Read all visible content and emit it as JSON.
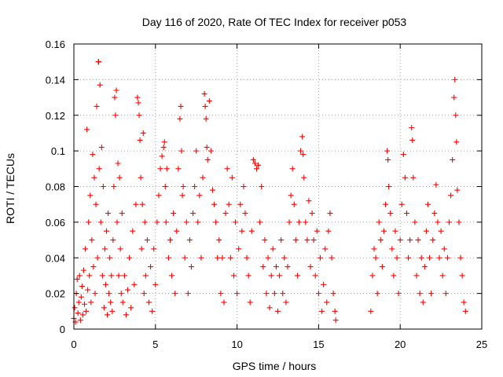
{
  "chart_data": {
    "type": "scatter",
    "title": "Day 116 of 2020, Rate Of TEC Index for receiver p053",
    "xlabel": "GPS time / hours",
    "ylabel": "ROTI / TECUs",
    "xlim": [
      0,
      25
    ],
    "ylim": [
      0,
      0.16
    ],
    "x_ticks": [
      0,
      5,
      10,
      15,
      20,
      25
    ],
    "x_tick_labels": [
      "0",
      "5",
      "10",
      "15",
      "20",
      "25"
    ],
    "y_ticks": [
      0,
      0.02,
      0.04,
      0.06,
      0.08,
      0.1,
      0.12,
      0.14,
      0.16
    ],
    "y_tick_labels": [
      "0",
      "0.02",
      "0.04",
      "0.06",
      "0.08",
      "0.1",
      "0.12",
      "0.14",
      "0.16"
    ],
    "grid": true,
    "marker": "+",
    "color": "#ff0000",
    "series": [
      {
        "points": [
          [
            0.0,
            0.006
          ],
          [
            0.05,
            0.012
          ],
          [
            0.1,
            0.004
          ],
          [
            0.15,
            0.02
          ],
          [
            0.2,
            0.028
          ],
          [
            0.25,
            0.009
          ],
          [
            0.3,
            0.015
          ],
          [
            0.35,
            0.03
          ],
          [
            0.4,
            0.005
          ],
          [
            0.45,
            0.018
          ],
          [
            0.5,
            0.024
          ],
          [
            0.55,
            0.008
          ],
          [
            0.6,
            0.033
          ],
          [
            0.65,
            0.014
          ],
          [
            0.7,
            0.045
          ],
          [
            0.75,
            0.01
          ],
          [
            0.8,
            0.112
          ],
          [
            0.85,
            0.022
          ],
          [
            0.9,
            0.06
          ],
          [
            0.95,
            0.03
          ],
          [
            1.0,
            0.075
          ],
          [
            1.05,
            0.015
          ],
          [
            1.1,
            0.05
          ],
          [
            1.15,
            0.098
          ],
          [
            1.2,
            0.035
          ],
          [
            1.25,
            0.085
          ],
          [
            1.3,
            0.02
          ],
          [
            1.35,
            0.07
          ],
          [
            1.4,
            0.125
          ],
          [
            1.45,
            0.04
          ],
          [
            1.5,
            0.15
          ],
          [
            1.52,
            0.15
          ],
          [
            1.55,
            0.09
          ],
          [
            1.6,
            0.137
          ],
          [
            1.65,
            0.06
          ],
          [
            1.7,
            0.102
          ],
          [
            1.75,
            0.03
          ],
          [
            1.8,
            0.08
          ],
          [
            1.85,
            0.012
          ],
          [
            1.9,
            0.045
          ],
          [
            1.95,
            0.025
          ],
          [
            2.0,
            0.055
          ],
          [
            2.05,
            0.008
          ],
          [
            2.1,
            0.065
          ],
          [
            2.15,
            0.02
          ],
          [
            2.2,
            0.04
          ],
          [
            2.25,
            0.015
          ],
          [
            2.3,
            0.03
          ],
          [
            2.35,
            0.01
          ],
          [
            2.4,
            0.05
          ],
          [
            2.45,
            0.08
          ],
          [
            2.5,
            0.13
          ],
          [
            2.55,
            0.12
          ],
          [
            2.6,
            0.134
          ],
          [
            2.65,
            0.06
          ],
          [
            2.7,
            0.093
          ],
          [
            2.75,
            0.03
          ],
          [
            2.8,
            0.085
          ],
          [
            2.85,
            0.045
          ],
          [
            2.9,
            0.02
          ],
          [
            2.95,
            0.065
          ],
          [
            3.0,
            0.015
          ],
          [
            3.1,
            0.03
          ],
          [
            3.2,
            0.008
          ],
          [
            3.3,
            0.022
          ],
          [
            3.4,
            0.04
          ],
          [
            3.5,
            0.012
          ],
          [
            3.6,
            0.055
          ],
          [
            3.7,
            0.025
          ],
          [
            3.8,
            0.07
          ],
          [
            3.9,
            0.13
          ],
          [
            3.95,
            0.127
          ],
          [
            4.0,
            0.12
          ],
          [
            4.05,
            0.106
          ],
          [
            4.1,
            0.085
          ],
          [
            4.15,
            0.045
          ],
          [
            4.2,
            0.07
          ],
          [
            4.25,
            0.11
          ],
          [
            4.3,
            0.02
          ],
          [
            4.35,
            0.06
          ],
          [
            4.4,
            0.03
          ],
          [
            4.5,
            0.05
          ],
          [
            4.6,
            0.015
          ],
          [
            4.7,
            0.035
          ],
          [
            4.8,
            0.01
          ],
          [
            4.9,
            0.045
          ],
          [
            5.0,
            0.025
          ],
          [
            5.1,
            0.06
          ],
          [
            5.2,
            0.075
          ],
          [
            5.3,
            0.09
          ],
          [
            5.4,
            0.097
          ],
          [
            5.5,
            0.102
          ],
          [
            5.55,
            0.105
          ],
          [
            5.6,
            0.08
          ],
          [
            5.65,
            0.06
          ],
          [
            5.7,
            0.09
          ],
          [
            5.8,
            0.04
          ],
          [
            5.9,
            0.05
          ],
          [
            6.0,
            0.03
          ],
          [
            6.1,
            0.065
          ],
          [
            6.2,
            0.02
          ],
          [
            6.3,
            0.055
          ],
          [
            6.4,
            0.09
          ],
          [
            6.5,
            0.118
          ],
          [
            6.55,
            0.125
          ],
          [
            6.6,
            0.1
          ],
          [
            6.65,
            0.075
          ],
          [
            6.7,
            0.08
          ],
          [
            6.8,
            0.04
          ],
          [
            6.9,
            0.06
          ],
          [
            7.0,
            0.02
          ],
          [
            7.1,
            0.05
          ],
          [
            7.2,
            0.035
          ],
          [
            7.3,
            0.065
          ],
          [
            7.4,
            0.08
          ],
          [
            7.5,
            0.1
          ],
          [
            7.6,
            0.06
          ],
          [
            7.7,
            0.075
          ],
          [
            7.8,
            0.04
          ],
          [
            7.9,
            0.085
          ],
          [
            8.0,
            0.132
          ],
          [
            8.05,
            0.125
          ],
          [
            8.1,
            0.118
          ],
          [
            8.15,
            0.102
          ],
          [
            8.2,
            0.095
          ],
          [
            8.3,
            0.128
          ],
          [
            8.4,
            0.1
          ],
          [
            8.5,
            0.078
          ],
          [
            8.6,
            0.07
          ],
          [
            8.7,
            0.06
          ],
          [
            8.8,
            0.04
          ],
          [
            8.9,
            0.05
          ],
          [
            9.0,
            0.02
          ],
          [
            9.1,
            0.04
          ],
          [
            9.2,
            0.015
          ],
          [
            9.3,
            0.065
          ],
          [
            9.4,
            0.09
          ],
          [
            9.5,
            0.07
          ],
          [
            9.6,
            0.04
          ],
          [
            9.7,
            0.085
          ],
          [
            9.8,
            0.03
          ],
          [
            9.9,
            0.06
          ],
          [
            10.0,
            0.02
          ],
          [
            10.1,
            0.045
          ],
          [
            10.2,
            0.07
          ],
          [
            10.3,
            0.055
          ],
          [
            10.4,
            0.08
          ],
          [
            10.5,
            0.065
          ],
          [
            10.6,
            0.04
          ],
          [
            10.7,
            0.03
          ],
          [
            10.8,
            0.015
          ],
          [
            10.9,
            0.055
          ],
          [
            11.0,
            0.095
          ],
          [
            11.1,
            0.093
          ],
          [
            11.2,
            0.09
          ],
          [
            11.3,
            0.092
          ],
          [
            11.4,
            0.06
          ],
          [
            11.5,
            0.08
          ],
          [
            11.6,
            0.035
          ],
          [
            11.7,
            0.05
          ],
          [
            11.8,
            0.02
          ],
          [
            11.9,
            0.04
          ],
          [
            12.0,
            0.012
          ],
          [
            12.1,
            0.03
          ],
          [
            12.2,
            0.045
          ],
          [
            12.3,
            0.02
          ],
          [
            12.4,
            0.035
          ],
          [
            12.5,
            0.01
          ],
          [
            12.6,
            0.03
          ],
          [
            12.7,
            0.05
          ],
          [
            12.8,
            0.02
          ],
          [
            12.9,
            0.04
          ],
          [
            13.0,
            0.015
          ],
          [
            13.1,
            0.035
          ],
          [
            13.2,
            0.06
          ],
          [
            13.3,
            0.075
          ],
          [
            13.4,
            0.09
          ],
          [
            13.5,
            0.07
          ],
          [
            13.6,
            0.05
          ],
          [
            13.7,
            0.03
          ],
          [
            13.8,
            0.06
          ],
          [
            13.9,
            0.1
          ],
          [
            14.0,
            0.108
          ],
          [
            14.05,
            0.098
          ],
          [
            14.1,
            0.085
          ],
          [
            14.2,
            0.06
          ],
          [
            14.3,
            0.05
          ],
          [
            14.4,
            0.072
          ],
          [
            14.5,
            0.035
          ],
          [
            14.6,
            0.065
          ],
          [
            14.7,
            0.05
          ],
          [
            14.8,
            0.03
          ],
          [
            14.9,
            0.055
          ],
          [
            15.0,
            0.02
          ],
          [
            15.1,
            0.04
          ],
          [
            15.2,
            0.01
          ],
          [
            15.3,
            0.025
          ],
          [
            15.4,
            0.045
          ],
          [
            15.5,
            0.015
          ],
          [
            15.6,
            0.055
          ],
          [
            15.7,
            0.065
          ],
          [
            15.8,
            0.04
          ],
          [
            15.9,
            0.02
          ],
          [
            16.0,
            0.01
          ],
          [
            16.05,
            0.005
          ],
          [
            18.2,
            0.01
          ],
          [
            18.3,
            0.03
          ],
          [
            18.4,
            0.045
          ],
          [
            18.5,
            0.04
          ],
          [
            18.6,
            0.02
          ],
          [
            18.7,
            0.06
          ],
          [
            18.8,
            0.05
          ],
          [
            18.9,
            0.035
          ],
          [
            19.0,
            0.055
          ],
          [
            19.1,
            0.07
          ],
          [
            19.2,
            0.1
          ],
          [
            19.25,
            0.095
          ],
          [
            19.3,
            0.08
          ],
          [
            19.4,
            0.065
          ],
          [
            19.5,
            0.045
          ],
          [
            19.6,
            0.03
          ],
          [
            19.7,
            0.055
          ],
          [
            19.8,
            0.04
          ],
          [
            19.9,
            0.02
          ],
          [
            20.0,
            0.05
          ],
          [
            20.1,
            0.07
          ],
          [
            20.2,
            0.098
          ],
          [
            20.3,
            0.085
          ],
          [
            20.4,
            0.065
          ],
          [
            20.5,
            0.04
          ],
          [
            20.6,
            0.05
          ],
          [
            20.7,
            0.113
          ],
          [
            20.75,
            0.106
          ],
          [
            20.8,
            0.085
          ],
          [
            20.9,
            0.06
          ],
          [
            21.0,
            0.03
          ],
          [
            21.1,
            0.05
          ],
          [
            21.2,
            0.02
          ],
          [
            21.3,
            0.04
          ],
          [
            21.4,
            0.015
          ],
          [
            21.5,
            0.035
          ],
          [
            21.6,
            0.055
          ],
          [
            21.7,
            0.07
          ],
          [
            21.8,
            0.04
          ],
          [
            21.9,
            0.02
          ],
          [
            22.0,
            0.05
          ],
          [
            22.1,
            0.065
          ],
          [
            22.2,
            0.081
          ],
          [
            22.3,
            0.06
          ],
          [
            22.4,
            0.04
          ],
          [
            22.5,
            0.055
          ],
          [
            22.6,
            0.03
          ],
          [
            22.7,
            0.045
          ],
          [
            22.8,
            0.02
          ],
          [
            22.9,
            0.04
          ],
          [
            23.0,
            0.06
          ],
          [
            23.1,
            0.075
          ],
          [
            23.2,
            0.095
          ],
          [
            23.3,
            0.13
          ],
          [
            23.35,
            0.14
          ],
          [
            23.4,
            0.12
          ],
          [
            23.45,
            0.105
          ],
          [
            23.5,
            0.078
          ],
          [
            23.6,
            0.06
          ],
          [
            23.7,
            0.04
          ],
          [
            23.8,
            0.03
          ],
          [
            23.9,
            0.015
          ],
          [
            24.0,
            0.01
          ]
        ]
      }
    ]
  }
}
